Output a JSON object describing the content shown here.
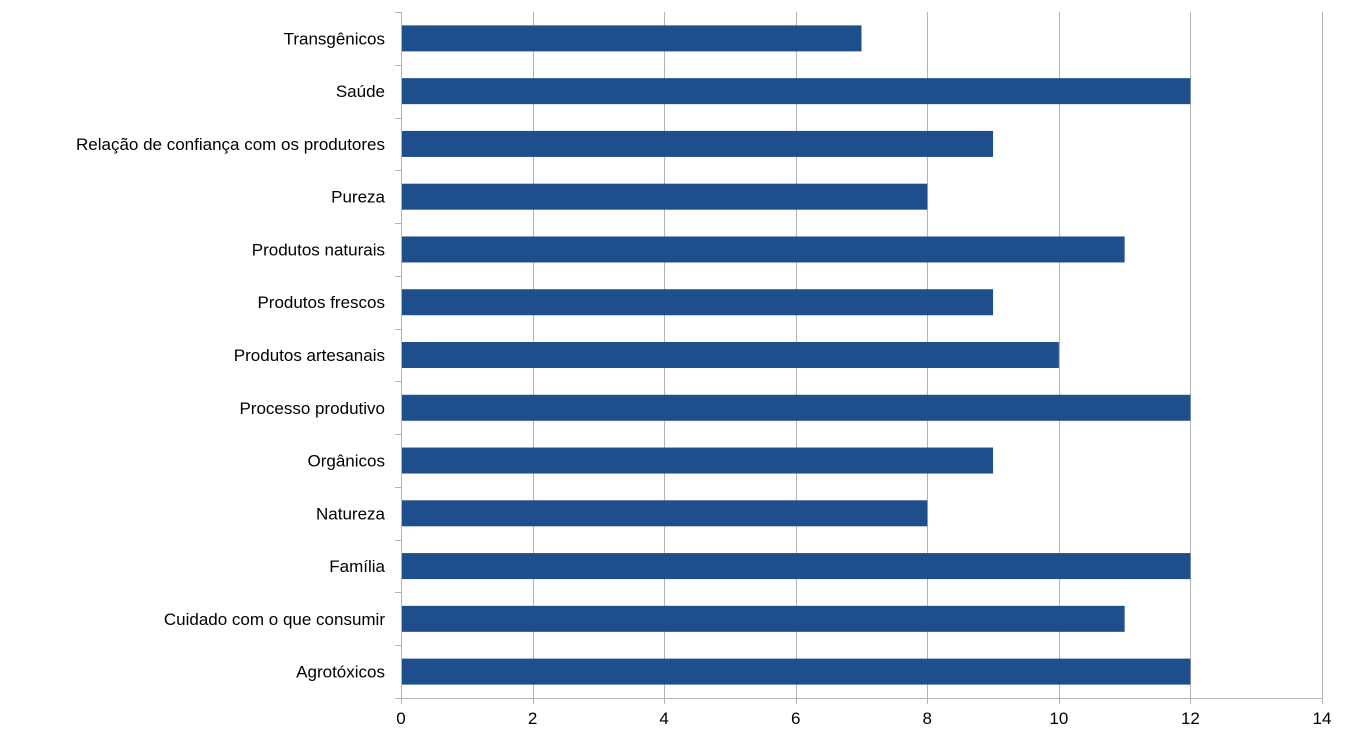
{
  "chart_data": {
    "type": "bar",
    "orientation": "horizontal",
    "categories": [
      "Transgênicos",
      "Saúde",
      "Relação de confiança com os produtores",
      "Pureza",
      "Produtos naturais",
      "Produtos frescos",
      "Produtos artesanais",
      "Processo produtivo",
      "Orgânicos",
      "Natureza",
      "Família",
      "Cuidado com o que consumir",
      "Agrotóxicos"
    ],
    "values": [
      7,
      12,
      9,
      8,
      11,
      9,
      10,
      12,
      9,
      8,
      12,
      11,
      12
    ],
    "xlim": [
      0,
      14
    ],
    "xticks": [
      "0",
      "2",
      "4",
      "6",
      "8",
      "10",
      "12",
      "14"
    ],
    "title": "",
    "xlabel": "",
    "ylabel": "",
    "grid": "vertical",
    "legend": "none",
    "colors": {
      "bar": "#1f4e8c",
      "grid": "#b3b3b3",
      "axis": "#b3b3b3"
    }
  }
}
